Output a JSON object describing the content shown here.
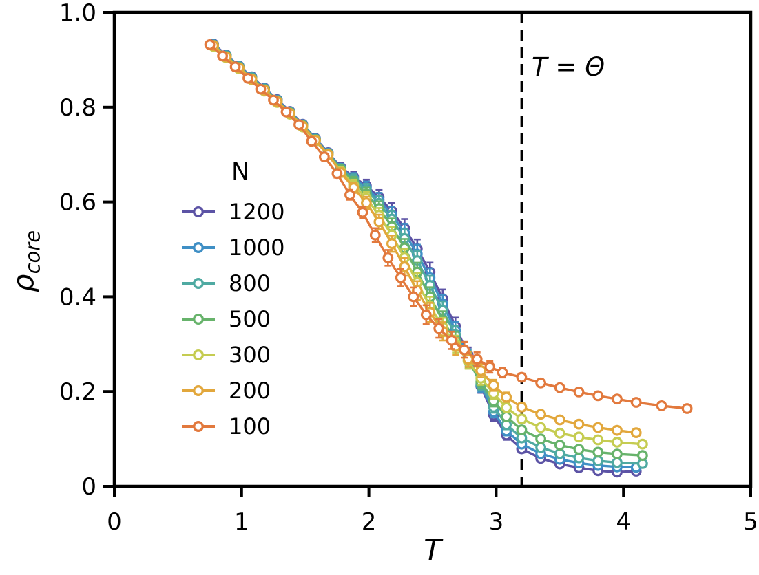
{
  "figure": {
    "background": "#ffffff"
  },
  "chart_data": {
    "type": "line",
    "title": "",
    "xlabel": "T",
    "ylabel": "ρ_core",
    "ylabel_main": "ρ",
    "ylabel_sub": "core",
    "xlim": [
      0,
      5
    ],
    "ylim": [
      0,
      1.0
    ],
    "x_ticks": [
      {
        "v": 0,
        "label": "0"
      },
      {
        "v": 1,
        "label": "1"
      },
      {
        "v": 2,
        "label": "2"
      },
      {
        "v": 3,
        "label": "3"
      },
      {
        "v": 4,
        "label": "4"
      },
      {
        "v": 5,
        "label": "5"
      }
    ],
    "y_ticks": [
      {
        "v": 0,
        "label": "0"
      },
      {
        "v": 0.2,
        "label": "0.2"
      },
      {
        "v": 0.4,
        "label": "0.4"
      },
      {
        "v": 0.6,
        "label": "0.6"
      },
      {
        "v": 0.8,
        "label": "0.8"
      },
      {
        "v": 1.0,
        "label": "1.0"
      }
    ],
    "grid": false,
    "axis_color": "#000000",
    "legend": {
      "title": "N",
      "position": "center-left"
    },
    "annotation": {
      "text": "T = Θ",
      "x": 3.3,
      "y": 0.9
    },
    "vline": {
      "x": 3.2,
      "style": "dashed",
      "color": "#000000"
    },
    "error_bars": {
      "base": 0.005,
      "peak": 0.015,
      "center": 2.45,
      "width": 0.42
    },
    "series": [
      {
        "name": "1200",
        "color": "#5c53a5",
        "x": [
          0.78,
          0.88,
          0.98,
          1.08,
          1.18,
          1.28,
          1.38,
          1.48,
          1.58,
          1.68,
          1.78,
          1.88,
          1.98,
          2.08,
          2.18,
          2.28,
          2.38,
          2.48,
          2.58,
          2.68,
          2.78,
          2.88,
          2.98,
          3.08,
          3.2,
          3.35,
          3.5,
          3.65,
          3.8,
          3.95,
          4.1
        ],
        "y": [
          0.933,
          0.91,
          0.887,
          0.864,
          0.84,
          0.816,
          0.791,
          0.764,
          0.734,
          0.704,
          0.673,
          0.653,
          0.634,
          0.61,
          0.581,
          0.545,
          0.501,
          0.452,
          0.396,
          0.338,
          0.277,
          0.211,
          0.15,
          0.108,
          0.079,
          0.059,
          0.047,
          0.039,
          0.033,
          0.03,
          0.032
        ]
      },
      {
        "name": "1000",
        "color": "#3f8fc5",
        "x": [
          0.78,
          0.88,
          0.98,
          1.08,
          1.18,
          1.28,
          1.38,
          1.48,
          1.58,
          1.68,
          1.78,
          1.88,
          1.98,
          2.08,
          2.18,
          2.28,
          2.38,
          2.48,
          2.58,
          2.68,
          2.78,
          2.88,
          2.98,
          3.08,
          3.2,
          3.35,
          3.5,
          3.65,
          3.8,
          3.95,
          4.1
        ],
        "y": [
          0.932,
          0.909,
          0.886,
          0.863,
          0.839,
          0.815,
          0.79,
          0.763,
          0.733,
          0.703,
          0.671,
          0.65,
          0.63,
          0.604,
          0.573,
          0.535,
          0.49,
          0.44,
          0.385,
          0.329,
          0.273,
          0.213,
          0.157,
          0.117,
          0.089,
          0.069,
          0.057,
          0.049,
          0.044,
          0.041,
          0.04
        ]
      },
      {
        "name": "800",
        "color": "#4faaa2",
        "x": [
          0.78,
          0.88,
          0.98,
          1.08,
          1.18,
          1.28,
          1.38,
          1.48,
          1.58,
          1.68,
          1.78,
          1.88,
          1.98,
          2.08,
          2.18,
          2.28,
          2.38,
          2.48,
          2.58,
          2.68,
          2.78,
          2.88,
          2.98,
          3.08,
          3.2,
          3.35,
          3.5,
          3.65,
          3.8,
          3.95,
          4.15
        ],
        "y": [
          0.931,
          0.908,
          0.885,
          0.862,
          0.838,
          0.814,
          0.789,
          0.762,
          0.732,
          0.702,
          0.67,
          0.647,
          0.625,
          0.597,
          0.564,
          0.523,
          0.476,
          0.424,
          0.371,
          0.32,
          0.27,
          0.216,
          0.167,
          0.13,
          0.102,
          0.082,
          0.069,
          0.06,
          0.054,
          0.05,
          0.048
        ]
      },
      {
        "name": "500",
        "color": "#67b36b",
        "x": [
          0.78,
          0.88,
          0.98,
          1.08,
          1.18,
          1.28,
          1.38,
          1.48,
          1.58,
          1.68,
          1.78,
          1.88,
          1.98,
          2.08,
          2.18,
          2.28,
          2.38,
          2.48,
          2.58,
          2.68,
          2.78,
          2.88,
          2.98,
          3.08,
          3.2,
          3.35,
          3.5,
          3.65,
          3.8,
          3.95,
          4.15
        ],
        "y": [
          0.93,
          0.907,
          0.884,
          0.86,
          0.837,
          0.813,
          0.788,
          0.761,
          0.731,
          0.701,
          0.668,
          0.642,
          0.617,
          0.586,
          0.548,
          0.503,
          0.452,
          0.4,
          0.35,
          0.308,
          0.265,
          0.22,
          0.18,
          0.147,
          0.119,
          0.1,
          0.087,
          0.078,
          0.072,
          0.068,
          0.065
        ]
      },
      {
        "name": "300",
        "color": "#c5cc51",
        "x": [
          0.78,
          0.88,
          0.98,
          1.08,
          1.18,
          1.28,
          1.38,
          1.48,
          1.58,
          1.68,
          1.78,
          1.88,
          1.98,
          2.08,
          2.18,
          2.28,
          2.38,
          2.48,
          2.58,
          2.68,
          2.78,
          2.88,
          2.98,
          3.08,
          3.2,
          3.35,
          3.5,
          3.65,
          3.8,
          3.95,
          4.15
        ],
        "y": [
          0.928,
          0.904,
          0.881,
          0.858,
          0.834,
          0.81,
          0.785,
          0.758,
          0.729,
          0.699,
          0.665,
          0.636,
          0.608,
          0.572,
          0.53,
          0.482,
          0.43,
          0.38,
          0.336,
          0.3,
          0.264,
          0.228,
          0.196,
          0.166,
          0.142,
          0.124,
          0.112,
          0.104,
          0.098,
          0.093,
          0.089
        ]
      },
      {
        "name": "200",
        "color": "#e2a73c",
        "x": [
          0.78,
          0.88,
          0.98,
          1.08,
          1.18,
          1.28,
          1.38,
          1.48,
          1.58,
          1.68,
          1.78,
          1.88,
          1.98,
          2.08,
          2.18,
          2.28,
          2.38,
          2.48,
          2.58,
          2.68,
          2.78,
          2.88,
          2.98,
          3.08,
          3.2,
          3.35,
          3.5,
          3.65,
          3.8,
          3.95,
          4.1
        ],
        "y": [
          0.93,
          0.906,
          0.883,
          0.859,
          0.836,
          0.812,
          0.787,
          0.76,
          0.73,
          0.7,
          0.662,
          0.63,
          0.598,
          0.558,
          0.512,
          0.463,
          0.413,
          0.367,
          0.327,
          0.295,
          0.268,
          0.244,
          0.213,
          0.188,
          0.167,
          0.152,
          0.14,
          0.131,
          0.124,
          0.118,
          0.113
        ]
      },
      {
        "name": "100",
        "color": "#e2793d",
        "x": [
          0.75,
          0.85,
          0.95,
          1.05,
          1.15,
          1.25,
          1.35,
          1.45,
          1.55,
          1.65,
          1.75,
          1.85,
          1.95,
          2.05,
          2.15,
          2.25,
          2.35,
          2.45,
          2.55,
          2.65,
          2.75,
          2.85,
          2.95,
          3.05,
          3.2,
          3.35,
          3.5,
          3.65,
          3.8,
          3.95,
          4.1,
          4.3,
          4.5
        ],
        "y": [
          0.932,
          0.908,
          0.885,
          0.861,
          0.838,
          0.815,
          0.79,
          0.763,
          0.728,
          0.695,
          0.66,
          0.615,
          0.578,
          0.53,
          0.482,
          0.44,
          0.4,
          0.362,
          0.333,
          0.308,
          0.288,
          0.268,
          0.252,
          0.24,
          0.23,
          0.218,
          0.208,
          0.199,
          0.191,
          0.184,
          0.177,
          0.17,
          0.164
        ]
      }
    ]
  }
}
